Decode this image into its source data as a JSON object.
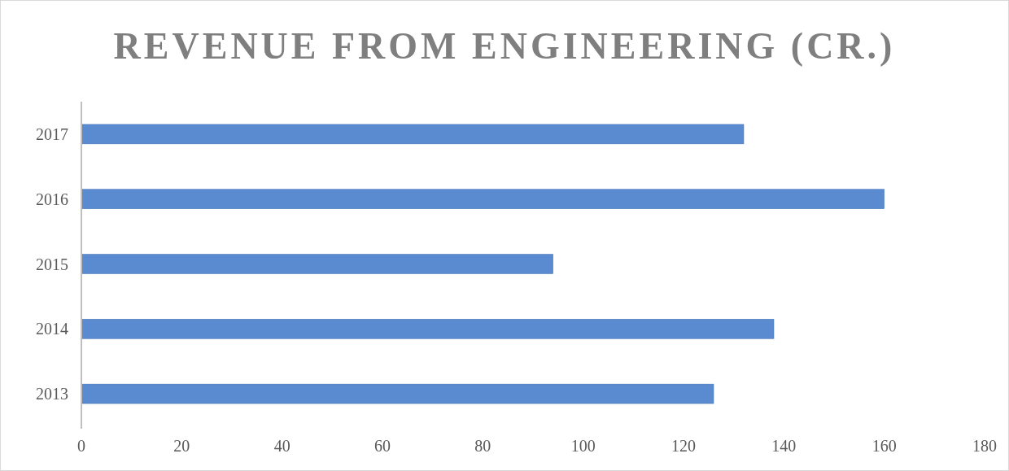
{
  "chart_data": {
    "type": "bar",
    "orientation": "horizontal",
    "title": "REVENUE FROM ENGINEERING (CR.)",
    "categories": [
      "2017",
      "2016",
      "2015",
      "2014",
      "2013"
    ],
    "values": [
      132,
      160,
      94,
      138,
      126
    ],
    "color": "#5a8ad0",
    "xlim": [
      0,
      180
    ],
    "xticks": [
      0,
      20,
      40,
      60,
      80,
      100,
      120,
      140,
      160,
      180
    ],
    "grid": false
  }
}
